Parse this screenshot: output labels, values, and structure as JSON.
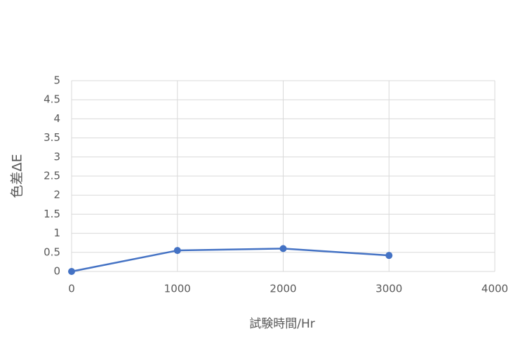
{
  "chart_data": {
    "type": "line",
    "x_label": "試験時間/Hr",
    "y_label": "色差ΔE",
    "x": [
      0,
      1000,
      2000,
      3000
    ],
    "series": [
      {
        "name": "色差ΔE",
        "color": "#4472c4",
        "values": [
          0,
          0.55,
          0.6,
          0.42
        ]
      }
    ],
    "xlim": [
      0,
      4000
    ],
    "xticks": [
      0,
      1000,
      2000,
      3000,
      4000
    ],
    "ylim": [
      0,
      5
    ],
    "yticks": [
      0,
      0.5,
      1,
      1.5,
      2,
      2.5,
      3,
      3.5,
      4,
      4.5,
      5
    ],
    "grid": true
  }
}
